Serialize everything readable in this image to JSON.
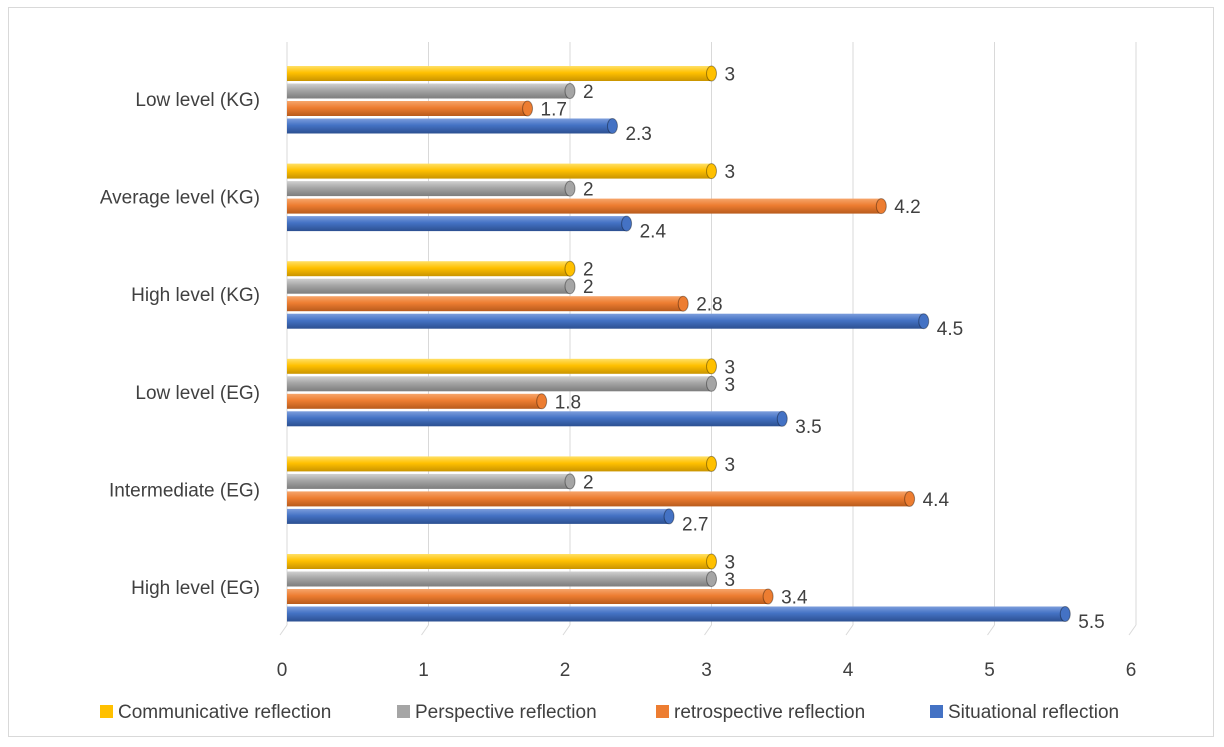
{
  "chart_data": {
    "type": "bar",
    "orientation": "horizontal",
    "title": "",
    "xlabel": "",
    "ylabel": "",
    "xlim": [
      0,
      6
    ],
    "ticks": [
      0,
      1,
      2,
      3,
      4,
      5,
      6
    ],
    "grid": true,
    "legend_position": "bottom",
    "categories": [
      "Low level (KG)",
      "Average level (KG)",
      "High level (KG)",
      "Low level (EG)",
      "Intermediate (EG)",
      "High level (EG)"
    ],
    "series": [
      {
        "name": "Communicative reflection",
        "color": "#ffc000",
        "values": [
          3,
          3,
          2,
          3,
          3,
          3
        ]
      },
      {
        "name": "Perspective reflection",
        "color": "#a5a5a5",
        "values": [
          2,
          2,
          2,
          3,
          2,
          3
        ]
      },
      {
        "name": "retrospective reflection",
        "color": "#ed7d31",
        "values": [
          1.7,
          4.2,
          2.8,
          1.8,
          4.4,
          3.4
        ]
      },
      {
        "name": "Situational reflection",
        "color": "#4472c4",
        "values": [
          2.3,
          2.4,
          4.5,
          3.5,
          2.7,
          5.5
        ]
      }
    ]
  }
}
